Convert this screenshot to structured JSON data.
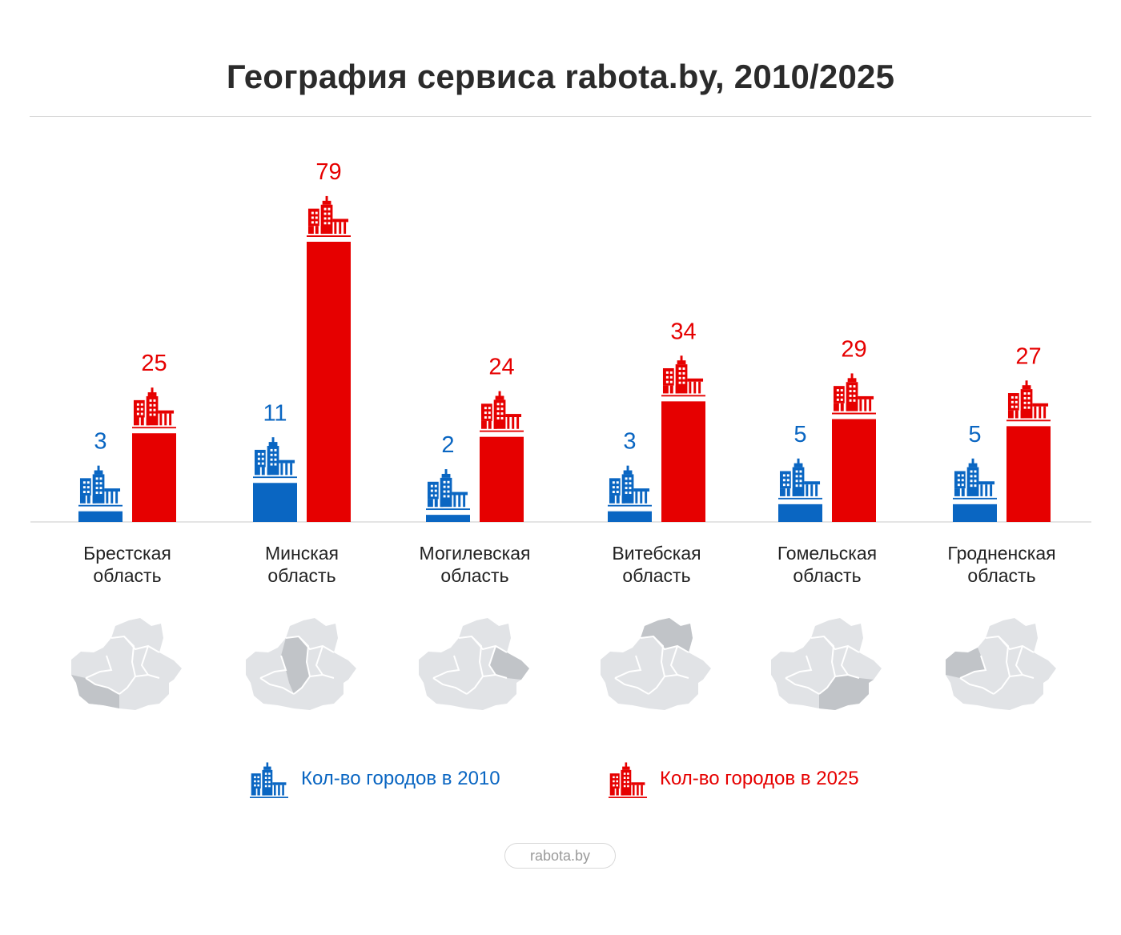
{
  "title": "География сервиса rabota.by, 2010/2025",
  "legend": {
    "series_2010": "Кол-во городов в 2010",
    "series_2025": "Кол-во городов в 2025"
  },
  "footer": {
    "brand": "rabota.by"
  },
  "colors": {
    "series_2010": "#0a66c2",
    "series_2025": "#e60000",
    "map_base": "#e1e3e6",
    "map_highlight": "#c1c4c8"
  },
  "icons": {
    "series_marker": "city-buildings-icon",
    "region_map": "belarus-map-icon"
  },
  "chart_data": {
    "type": "bar",
    "title": "География сервиса rabota.by, 2010/2025",
    "categories": [
      [
        "Брестская",
        "область"
      ],
      [
        "Минская",
        "область"
      ],
      [
        "Могилевская",
        "область"
      ],
      [
        "Витебская",
        "область"
      ],
      [
        "Гомельская",
        "область"
      ],
      [
        "Гродненская",
        "область"
      ]
    ],
    "series": [
      {
        "name": "Кол-во городов в 2010",
        "values": [
          3,
          11,
          2,
          3,
          5,
          5
        ]
      },
      {
        "name": "Кол-во городов в 2025",
        "values": [
          25,
          79,
          24,
          34,
          29,
          27
        ]
      }
    ],
    "ylim": [
      0,
      79
    ],
    "grid": false,
    "legend_position": "bottom"
  }
}
